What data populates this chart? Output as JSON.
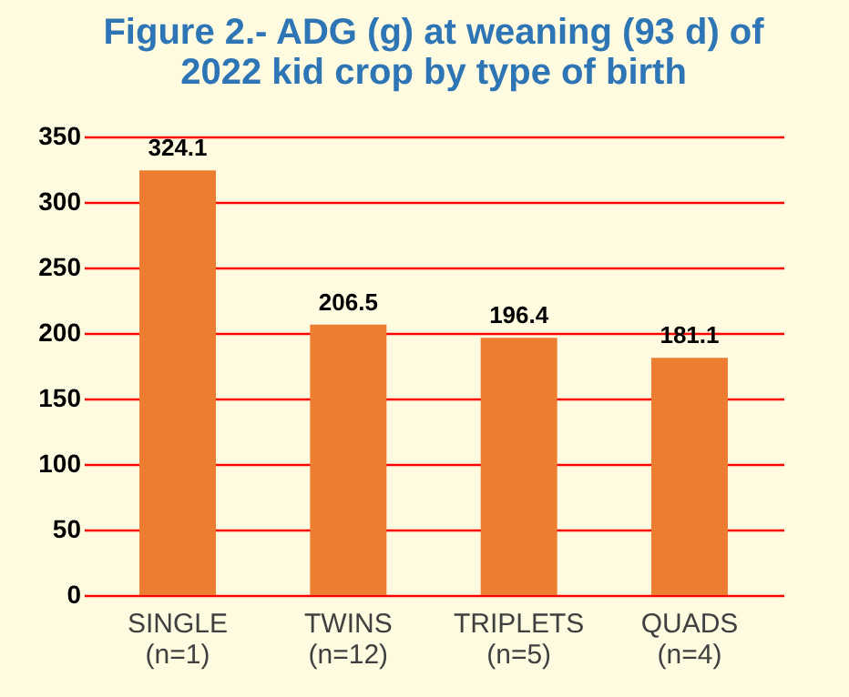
{
  "chart_data": {
    "type": "bar",
    "title": "Figure 2.- ADG (g) at weaning (93 d) of\n2022 kid crop by type of birth",
    "categories": [
      "SINGLE\n(n=1)",
      "TWINS\n(n=12)",
      "TRIPLETS\n(n=5)",
      "QUADS\n(n=4)"
    ],
    "values": [
      324.1,
      206.5,
      196.4,
      181.1
    ],
    "color": "#ed7d31",
    "ylim": [
      0,
      350
    ],
    "yticks": [
      0,
      50,
      100,
      150,
      200,
      250,
      300,
      350
    ],
    "grid": "y",
    "data_labels": true
  }
}
